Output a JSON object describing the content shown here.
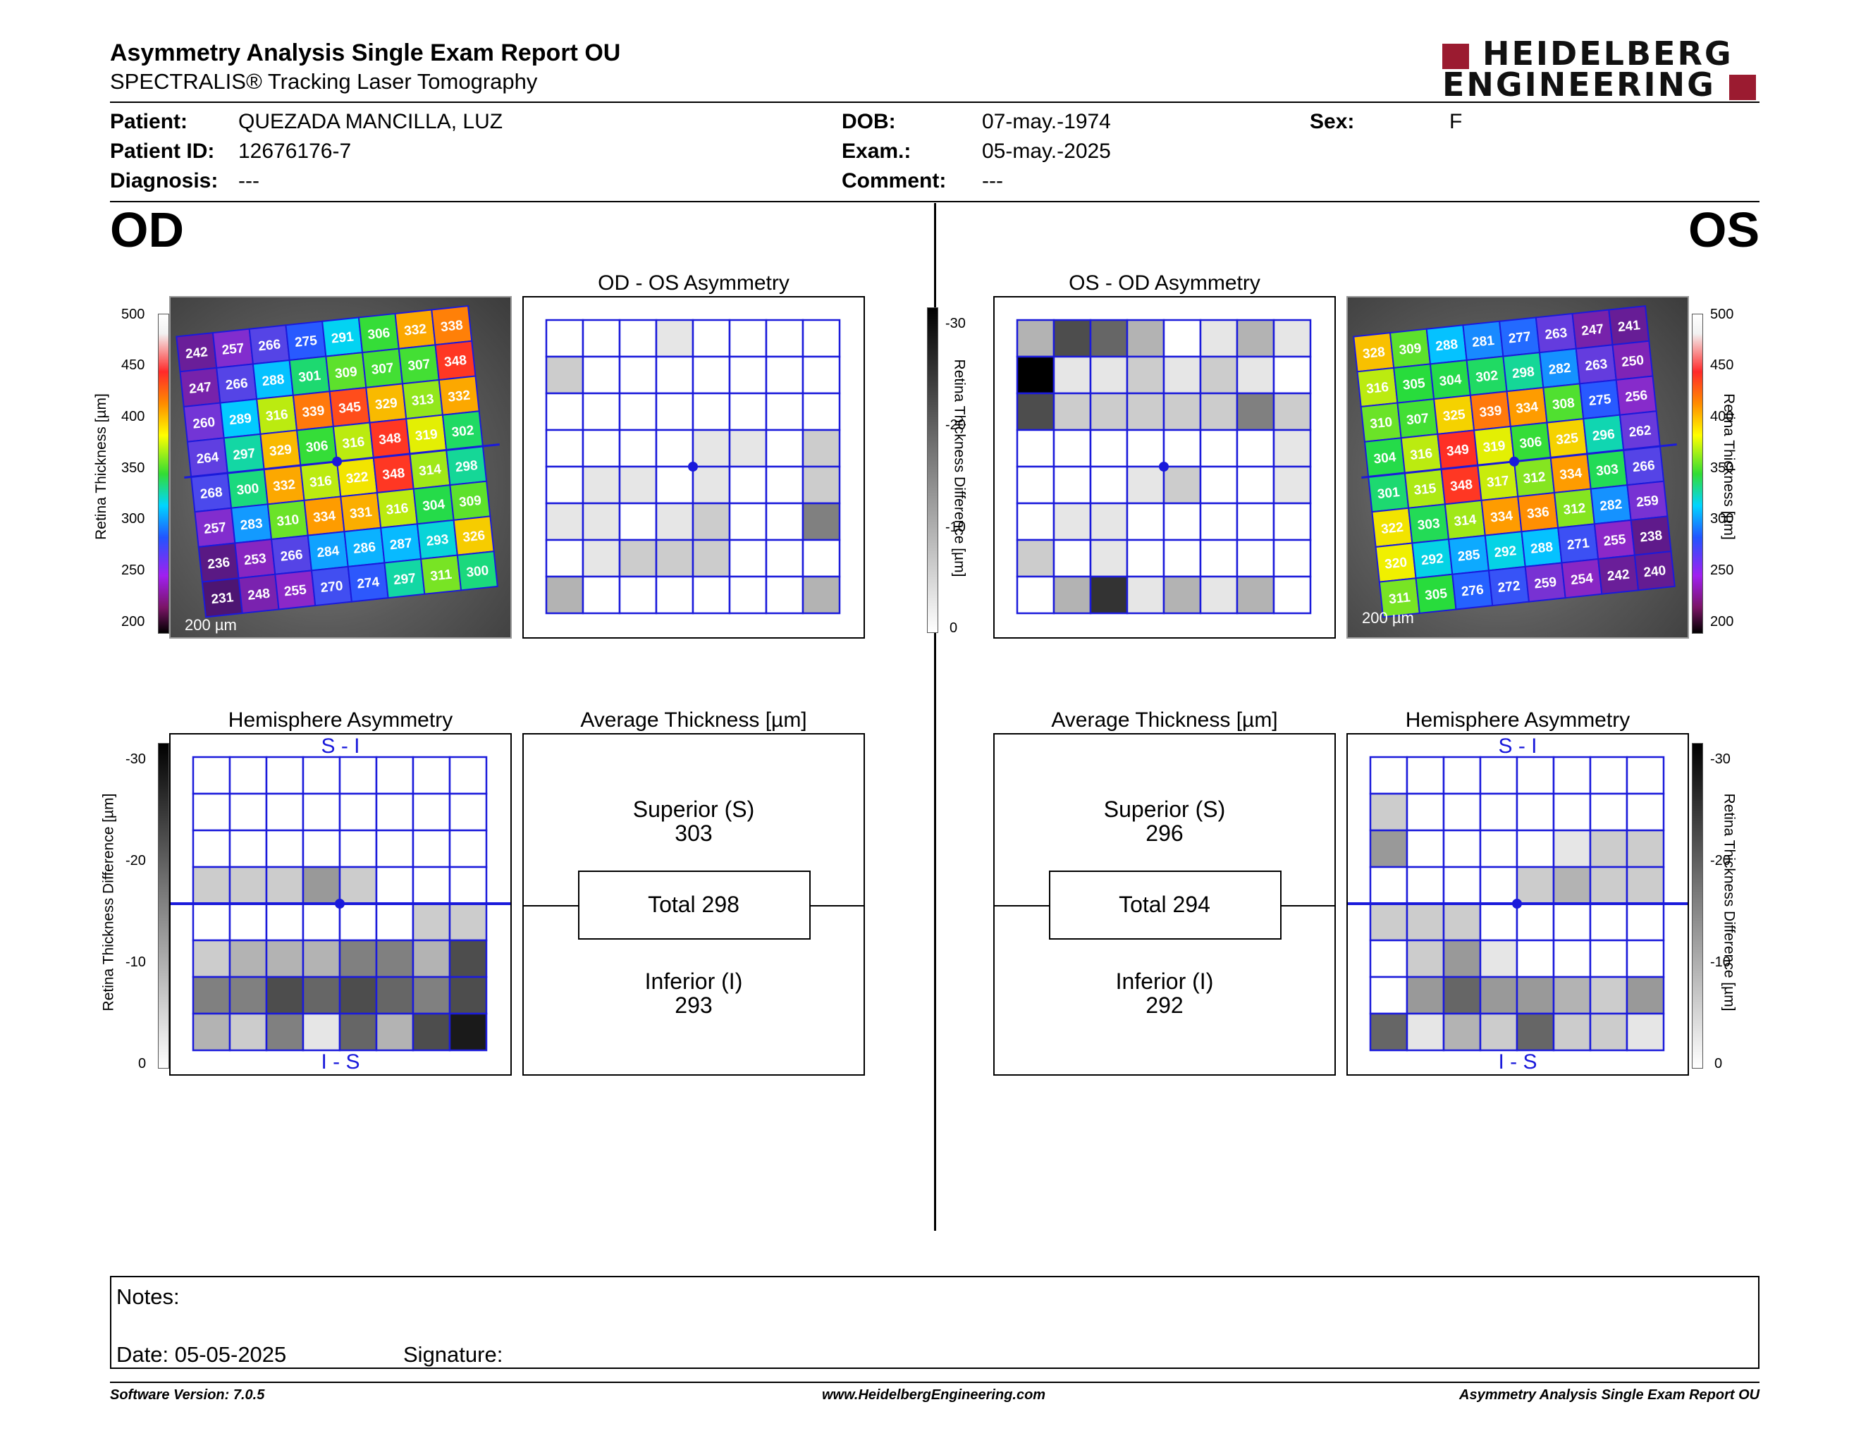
{
  "header": {
    "title": "Asymmetry Analysis Single Exam Report OU",
    "subtitle": "SPECTRALIS® Tracking Laser Tomography",
    "logo_line1": "HEIDELBERG",
    "logo_line2": "ENGINEERING"
  },
  "patient": {
    "patient_label": "Patient:",
    "patient_value": "QUEZADA MANCILLA, LUZ",
    "id_label": "Patient ID:",
    "id_value": "12676176-7",
    "diagnosis_label": "Diagnosis:",
    "diagnosis_value": "---",
    "dob_label": "DOB:",
    "dob_value": "07-may.-1974",
    "exam_label": "Exam.:",
    "exam_value": "05-may.-2025",
    "comment_label": "Comment:",
    "comment_value": "---",
    "sex_label": "Sex:",
    "sex_value": "F"
  },
  "od": {
    "eye_label": "OD",
    "asym_title": "OD - OS Asymmetry",
    "hemi_title": "Hemisphere Asymmetry",
    "hemi_top": "S - I",
    "hemi_bottom": "I - S",
    "avg_title": "Average Thickness [µm]",
    "sup_label": "Superior (S)",
    "sup_value": "303",
    "total_label": "Total 298",
    "inf_label": "Inferior (I)",
    "inf_value": "293",
    "scalebar": "200 µm",
    "thickness": [
      [
        242,
        257,
        266,
        275,
        291,
        306,
        332,
        338
      ],
      [
        247,
        266,
        288,
        301,
        309,
        307,
        307,
        348
      ],
      [
        260,
        289,
        316,
        339,
        345,
        329,
        313,
        332
      ],
      [
        264,
        297,
        329,
        306,
        316,
        348,
        319,
        302
      ],
      [
        268,
        300,
        332,
        316,
        322,
        348,
        314,
        298
      ],
      [
        257,
        283,
        310,
        334,
        331,
        316,
        304,
        309
      ],
      [
        236,
        253,
        266,
        284,
        286,
        287,
        293,
        326
      ],
      [
        231,
        248,
        255,
        270,
        274,
        297,
        311,
        300
      ]
    ],
    "asym_shade": [
      [
        0,
        0,
        0,
        1,
        0,
        0,
        0,
        0
      ],
      [
        2,
        0,
        0,
        0,
        0,
        0,
        0,
        0
      ],
      [
        0,
        0,
        0,
        0,
        0,
        0,
        0,
        0
      ],
      [
        0,
        0,
        0,
        0,
        1,
        1,
        0,
        2
      ],
      [
        0,
        1,
        1,
        0,
        1,
        0,
        0,
        2
      ],
      [
        1,
        1,
        0,
        1,
        2,
        0,
        0,
        5
      ],
      [
        0,
        1,
        2,
        2,
        2,
        0,
        0,
        0
      ],
      [
        3,
        0,
        0,
        0,
        0,
        0,
        0,
        3
      ]
    ],
    "hemi_shade": [
      [
        0,
        0,
        0,
        0,
        0,
        0,
        0,
        0
      ],
      [
        0,
        0,
        0,
        0,
        0,
        0,
        0,
        0
      ],
      [
        0,
        0,
        0,
        0,
        0,
        0,
        0,
        0
      ],
      [
        2,
        2,
        2,
        4,
        2,
        0,
        0,
        0
      ],
      [
        0,
        0,
        0,
        0,
        0,
        0,
        2,
        2
      ],
      [
        2,
        3,
        3,
        3,
        5,
        5,
        3,
        7
      ],
      [
        5,
        5,
        7,
        6,
        7,
        6,
        5,
        7
      ],
      [
        3,
        2,
        5,
        1,
        6,
        3,
        7,
        9
      ]
    ]
  },
  "os": {
    "eye_label": "OS",
    "asym_title": "OS - OD Asymmetry",
    "hemi_title": "Hemisphere Asymmetry",
    "hemi_top": "S - I",
    "hemi_bottom": "I - S",
    "avg_title": "Average Thickness [µm]",
    "sup_label": "Superior (S)",
    "sup_value": "296",
    "total_label": "Total 294",
    "inf_label": "Inferior (I)",
    "inf_value": "292",
    "scalebar": "200 µm",
    "thickness": [
      [
        328,
        309,
        288,
        281,
        277,
        263,
        247,
        241
      ],
      [
        316,
        305,
        304,
        302,
        298,
        282,
        263,
        250
      ],
      [
        310,
        307,
        325,
        339,
        334,
        308,
        275,
        256
      ],
      [
        304,
        316,
        349,
        319,
        306,
        325,
        296,
        262
      ],
      [
        301,
        315,
        348,
        317,
        312,
        334,
        303,
        266
      ],
      [
        322,
        303,
        314,
        334,
        336,
        312,
        282,
        259
      ],
      [
        320,
        292,
        285,
        292,
        288,
        271,
        255,
        238
      ],
      [
        311,
        305,
        276,
        272,
        259,
        254,
        242,
        240
      ]
    ],
    "asym_shade": [
      [
        3,
        7,
        6,
        3,
        0,
        1,
        3,
        1
      ],
      [
        10,
        1,
        1,
        2,
        1,
        2,
        1,
        0
      ],
      [
        7,
        2,
        2,
        2,
        2,
        2,
        5,
        2
      ],
      [
        0,
        0,
        0,
        0,
        0,
        0,
        0,
        1
      ],
      [
        0,
        0,
        0,
        1,
        2,
        0,
        0,
        1
      ],
      [
        0,
        1,
        1,
        0,
        0,
        0,
        0,
        0
      ],
      [
        2,
        0,
        1,
        0,
        0,
        0,
        0,
        0
      ],
      [
        0,
        3,
        8,
        1,
        3,
        1,
        3,
        0
      ]
    ],
    "hemi_shade": [
      [
        0,
        0,
        0,
        0,
        0,
        0,
        0,
        0
      ],
      [
        2,
        0,
        0,
        0,
        0,
        0,
        0,
        0
      ],
      [
        4,
        0,
        0,
        0,
        0,
        1,
        2,
        2
      ],
      [
        0,
        0,
        0,
        0,
        2,
        3,
        2,
        2
      ],
      [
        2,
        2,
        2,
        0,
        0,
        0,
        0,
        0
      ],
      [
        0,
        2,
        4,
        1,
        0,
        0,
        0,
        0
      ],
      [
        0,
        4,
        6,
        4,
        4,
        3,
        2,
        4
      ],
      [
        6,
        1,
        3,
        2,
        6,
        2,
        2,
        1
      ]
    ]
  },
  "scales": {
    "thickness_label": "Retina Thickness [µm]",
    "thickness_ticks": [
      "500",
      "450",
      "400",
      "350",
      "300",
      "250",
      "200"
    ],
    "diff_label": "Retina Thickness Difference [µm]",
    "diff_ticks": [
      "-30",
      "-20",
      "-10",
      "0"
    ]
  },
  "notes": {
    "notes_label": "Notes:",
    "date_label": "Date: 05-05-2025",
    "signature_label": "Signature:"
  },
  "footer": {
    "version": "Software Version: 7.0.5",
    "website": "www.HeidelbergEngineering.com",
    "report_name": "Asymmetry Analysis Single Exam Report OU"
  },
  "colors": {
    "grid_blue": "#1a1adb",
    "brand_red": "#9b1b30"
  }
}
